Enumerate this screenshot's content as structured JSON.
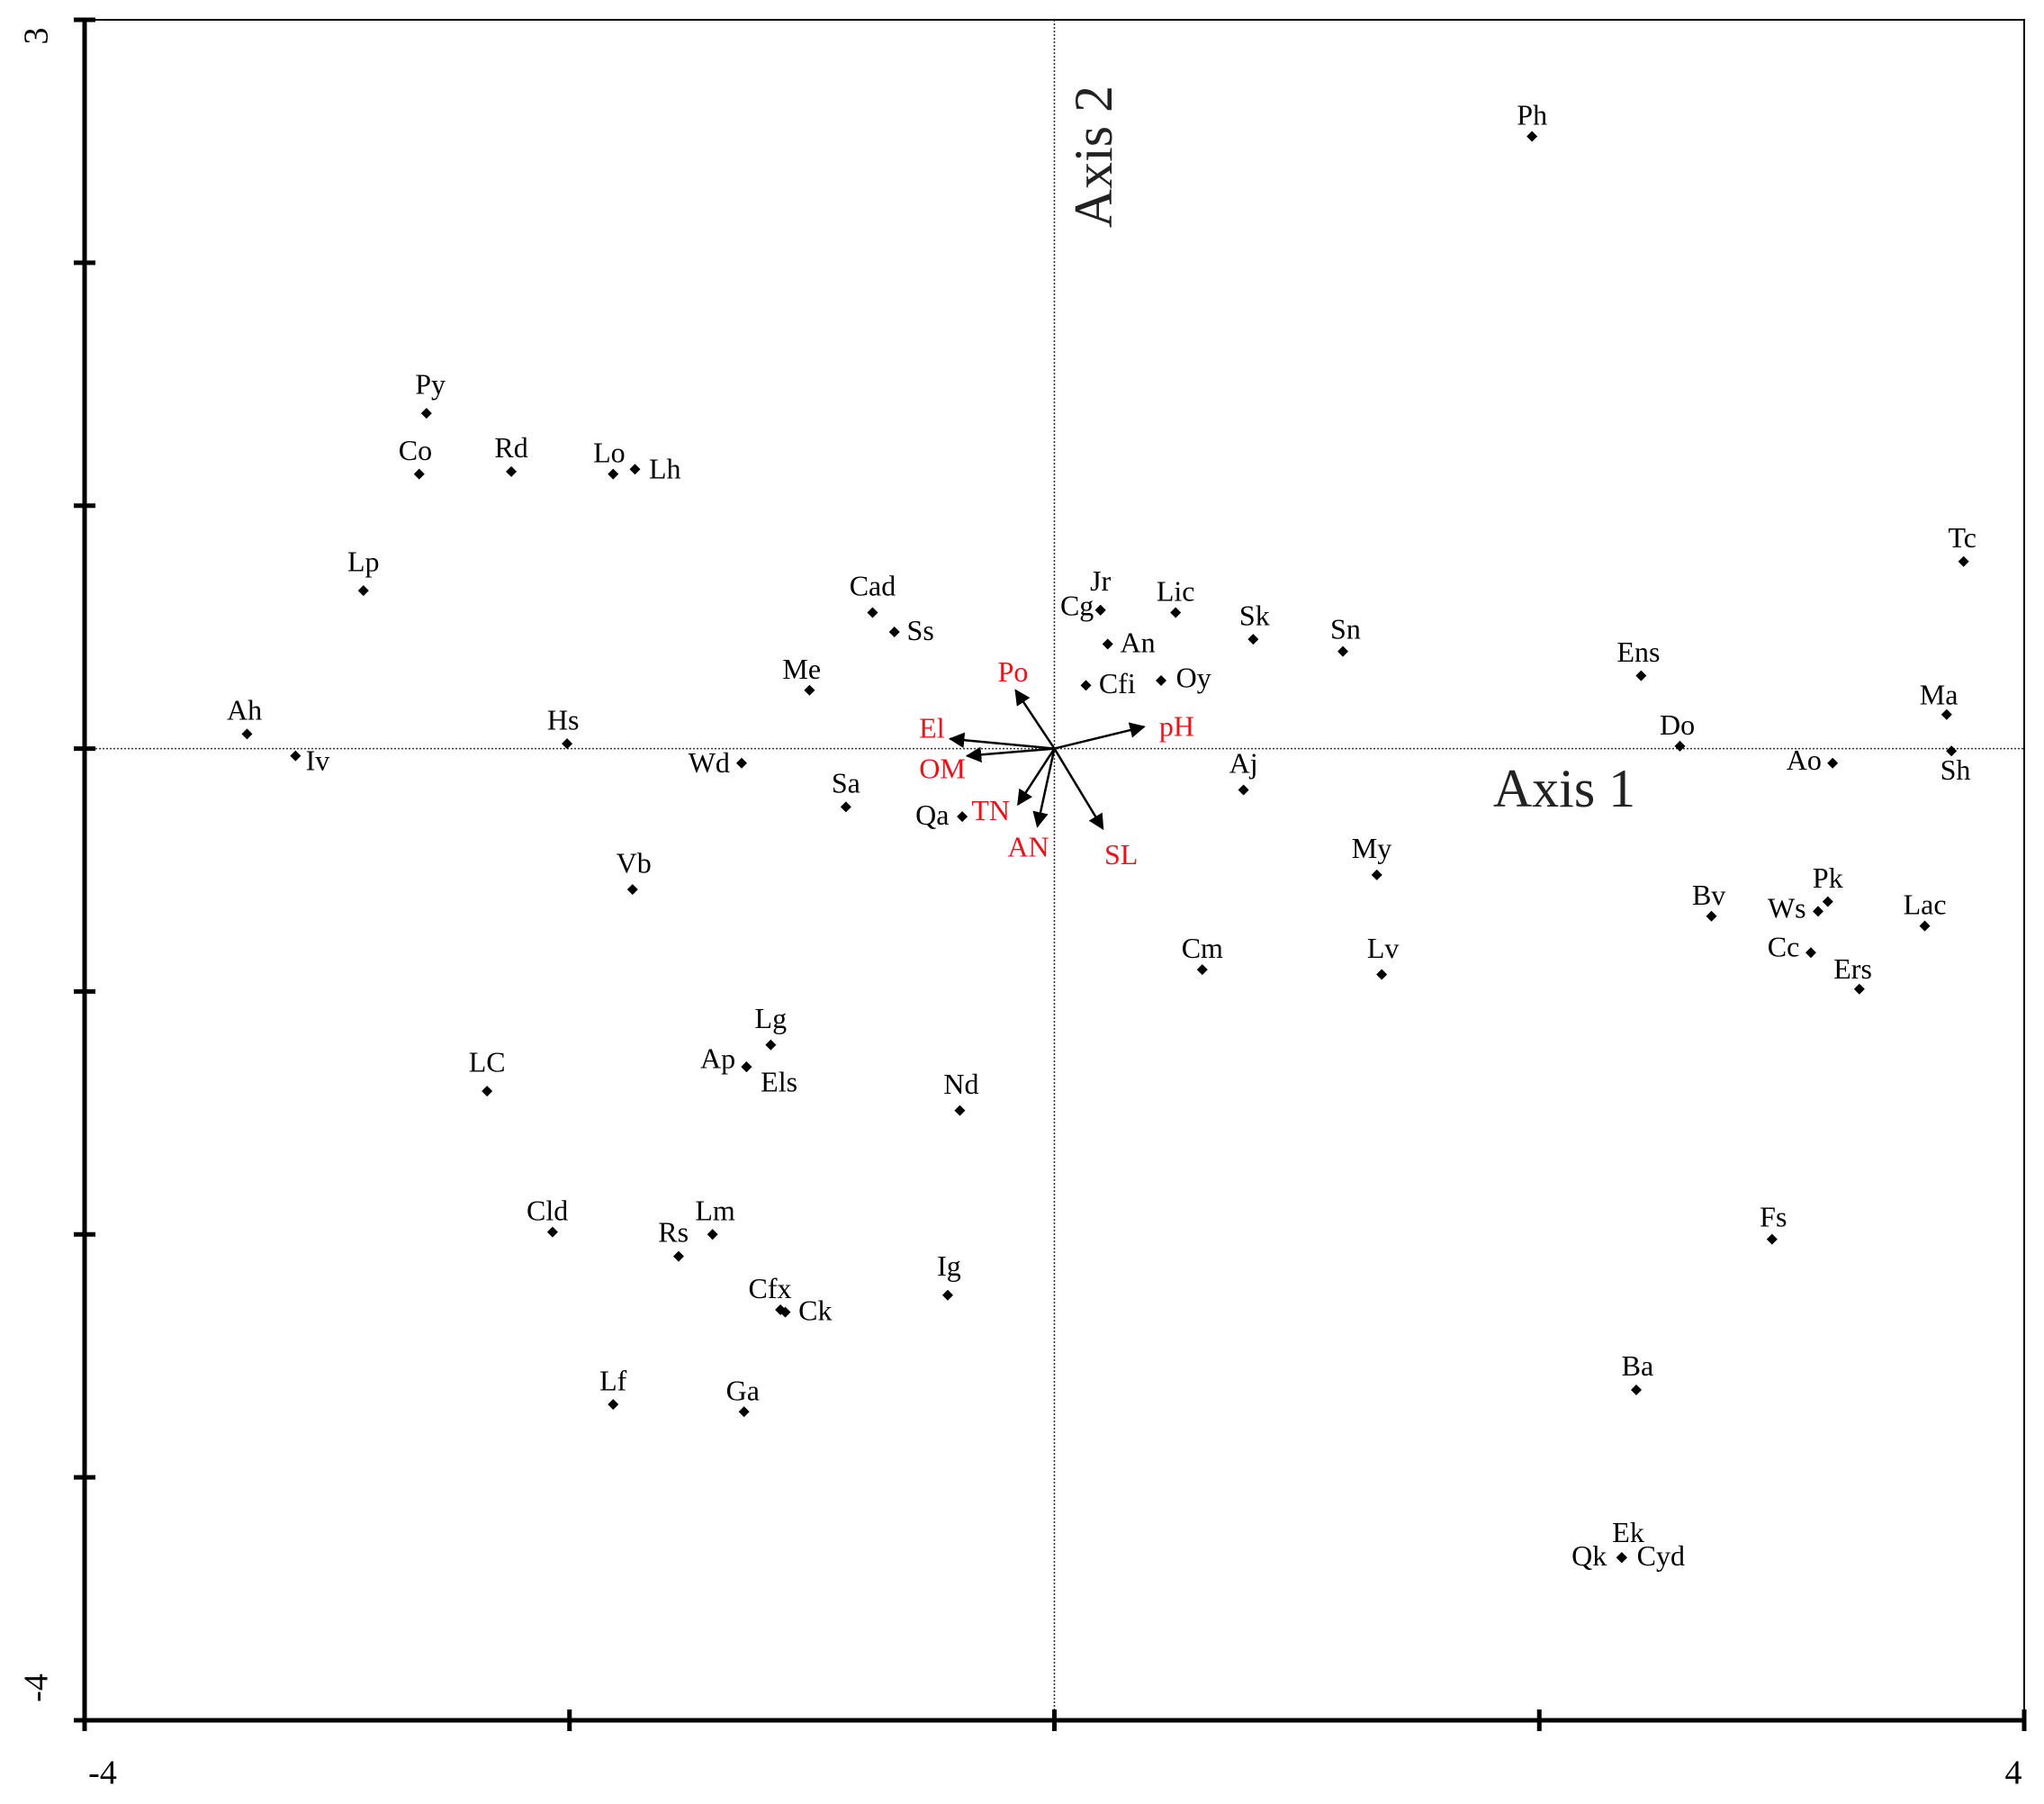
{
  "chart_data": {
    "type": "scatter",
    "labels": [
      "Ph",
      "Py",
      "Co",
      "Rd",
      "Lo",
      "Lh",
      "Lp",
      "Cad",
      "Ss",
      "Me",
      "Ah",
      "Iv",
      "Hs",
      "Wd",
      "Sa",
      "Qa",
      "Vb",
      "Jr",
      "Cg",
      "An",
      "Lic",
      "Sk",
      "Sn",
      "Cfi",
      "Oy",
      "Aj",
      "Ens",
      "Do",
      "Tc",
      "Ma",
      "Sh",
      "Ao",
      "My",
      "Bv",
      "Pk",
      "Ws",
      "Lac",
      "Cc",
      "Ers",
      "Cm",
      "Lv",
      "Lg",
      "Ap",
      "Els",
      "LC",
      "Nd",
      "Cld",
      "Lm",
      "Rs",
      "Ig",
      "Cfx",
      "Ck",
      "Lf",
      "Ga",
      "Fs",
      "Ba",
      "Ek",
      "Qk",
      "Cyd"
    ],
    "x": [
      1.97,
      -2.59,
      -2.62,
      -2.24,
      -1.82,
      -1.73,
      -2.85,
      -0.75,
      -0.66,
      -1.01,
      -3.33,
      -3.13,
      -2.01,
      -1.29,
      -0.86,
      -0.38,
      -1.74,
      0.19,
      0.19,
      0.22,
      0.5,
      0.82,
      1.19,
      0.13,
      0.44,
      0.78,
      2.42,
      2.58,
      3.75,
      3.68,
      3.7,
      3.21,
      1.33,
      2.71,
      3.19,
      3.15,
      3.59,
      3.12,
      3.32,
      0.61,
      1.35,
      -1.17,
      -1.27,
      -1.27,
      -2.34,
      -0.39,
      -2.07,
      -1.41,
      -1.55,
      -0.44,
      -1.13,
      -1.11,
      -1.82,
      -1.28,
      2.96,
      2.4,
      2.34,
      2.34,
      2.34
    ],
    "y": [
      2.52,
      1.38,
      1.13,
      1.14,
      1.13,
      1.15,
      0.65,
      0.56,
      0.48,
      0.24,
      0.06,
      -0.03,
      0.02,
      -0.06,
      -0.24,
      -0.28,
      -0.58,
      0.57,
      0.57,
      0.43,
      0.56,
      0.45,
      0.4,
      0.26,
      0.28,
      -0.17,
      0.3,
      0.01,
      0.77,
      0.14,
      -0.01,
      -0.06,
      -0.52,
      -0.69,
      -0.63,
      -0.67,
      -0.73,
      -0.84,
      -0.99,
      -0.91,
      -0.93,
      -1.22,
      -1.31,
      -1.31,
      -1.41,
      -1.49,
      -1.99,
      -2.0,
      -2.09,
      -2.25,
      -2.31,
      -2.32,
      -2.7,
      -2.73,
      -2.02,
      -2.64,
      -3.33,
      -3.33,
      -3.33
    ],
    "color": "#000000",
    "vectors": {
      "labels": [
        "Po",
        "El",
        "OM",
        "TN",
        "AN",
        "SL",
        "pH"
      ],
      "x": [
        -0.16,
        -0.43,
        -0.36,
        -0.15,
        -0.07,
        0.2,
        0.37
      ],
      "y": [
        0.24,
        0.04,
        -0.03,
        -0.23,
        -0.32,
        -0.33,
        0.09
      ],
      "color": "#000000",
      "label_color": "#e8141c"
    },
    "x_label": "Axis 1",
    "y_label": "Axis 2",
    "xlim": [
      -4,
      4
    ],
    "ylim": [
      -4,
      3
    ],
    "xticks": [
      -4,
      4
    ],
    "yticks": [
      -4,
      3
    ],
    "xtick_marks": [
      -4,
      -2,
      0,
      2,
      4
    ],
    "ytick_marks": [
      -4,
      -3,
      -2,
      -1,
      0,
      1,
      2,
      3
    ]
  }
}
